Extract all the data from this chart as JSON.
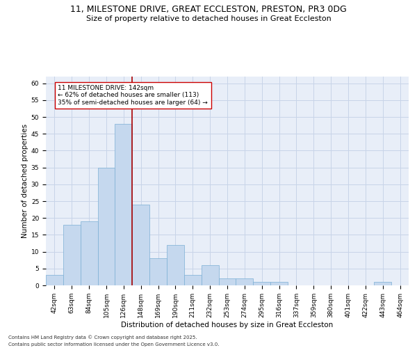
{
  "title1": "11, MILESTONE DRIVE, GREAT ECCLESTON, PRESTON, PR3 0DG",
  "title2": "Size of property relative to detached houses in Great Eccleston",
  "xlabel": "Distribution of detached houses by size in Great Eccleston",
  "ylabel": "Number of detached properties",
  "footnote1": "Contains HM Land Registry data © Crown copyright and database right 2025.",
  "footnote2": "Contains public sector information licensed under the Open Government Licence v3.0.",
  "categories": [
    "42sqm",
    "63sqm",
    "84sqm",
    "105sqm",
    "126sqm",
    "148sqm",
    "169sqm",
    "190sqm",
    "211sqm",
    "232sqm",
    "253sqm",
    "274sqm",
    "295sqm",
    "316sqm",
    "337sqm",
    "359sqm",
    "380sqm",
    "401sqm",
    "422sqm",
    "443sqm",
    "464sqm"
  ],
  "values": [
    3,
    18,
    19,
    35,
    48,
    24,
    8,
    12,
    3,
    6,
    2,
    2,
    1,
    1,
    0,
    0,
    0,
    0,
    0,
    1,
    0
  ],
  "bar_color": "#c5d8ee",
  "bar_edgecolor": "#7bafd4",
  "grid_color": "#c8d4e8",
  "background_color": "#e8eef8",
  "vline_color": "#aa0000",
  "annotation_text": "11 MILESTONE DRIVE: 142sqm\n← 62% of detached houses are smaller (113)\n35% of semi-detached houses are larger (64) →",
  "annotation_box_color": "#cc0000",
  "ylim": [
    0,
    62
  ],
  "yticks": [
    0,
    5,
    10,
    15,
    20,
    25,
    30,
    35,
    40,
    45,
    50,
    55,
    60
  ],
  "title1_fontsize": 9,
  "title2_fontsize": 8,
  "axis_label_fontsize": 7.5,
  "tick_fontsize": 6.5,
  "annotation_fontsize": 6.5,
  "footnote_fontsize": 5
}
